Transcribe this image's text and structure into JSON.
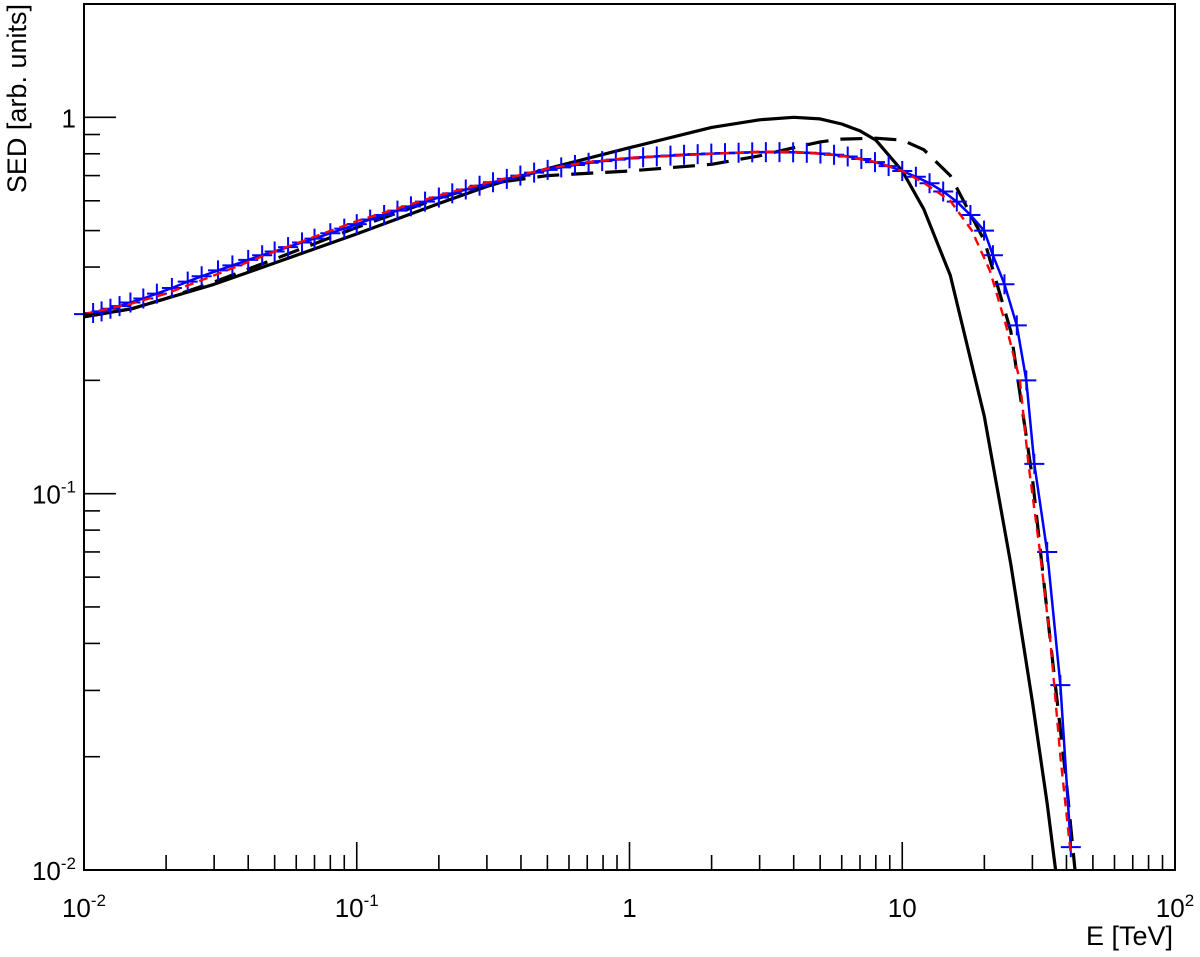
{
  "chart_data": {
    "type": "line",
    "xlabel": "E [TeV]",
    "ylabel": "SED [arb. units]",
    "xscale": "log",
    "yscale": "log",
    "xlim": [
      0.01,
      100
    ],
    "ylim": [
      0.01,
      2
    ],
    "grid": false,
    "x_ticks": [
      {
        "base": "10",
        "exp": "-2"
      },
      {
        "base": "10",
        "exp": "-1"
      },
      {
        "base": "1",
        "exp": ""
      },
      {
        "base": "10",
        "exp": ""
      },
      {
        "base": "10",
        "exp": "2"
      }
    ],
    "y_ticks": [
      {
        "base": "10",
        "exp": "-2"
      },
      {
        "base": "10",
        "exp": "-1"
      },
      {
        "base": "1",
        "exp": ""
      }
    ],
    "colors": {
      "solid": "#000000",
      "dashed": "#000000",
      "fit": "#ff0000",
      "points": "#0000ff"
    },
    "series": [
      {
        "style": "solid-black",
        "x": [
          0.01,
          0.015,
          0.02,
          0.03,
          0.05,
          0.1,
          0.2,
          0.3,
          0.5,
          1,
          2,
          3,
          4,
          5,
          6,
          7,
          8,
          10,
          12,
          15,
          20,
          25,
          30,
          34,
          36.5
        ],
        "y": [
          0.295,
          0.31,
          0.33,
          0.36,
          0.41,
          0.49,
          0.59,
          0.655,
          0.73,
          0.83,
          0.94,
          0.985,
          1.0,
          0.99,
          0.96,
          0.92,
          0.87,
          0.72,
          0.57,
          0.38,
          0.16,
          0.065,
          0.028,
          0.015,
          0.01
        ]
      },
      {
        "style": "dashed-black",
        "x": [
          0.01,
          0.015,
          0.02,
          0.03,
          0.05,
          0.1,
          0.2,
          0.3,
          0.5,
          1,
          2,
          3,
          4,
          5,
          6,
          8,
          10,
          12,
          15,
          20,
          25,
          30,
          35,
          40,
          43
        ],
        "y": [
          0.295,
          0.31,
          0.33,
          0.365,
          0.42,
          0.51,
          0.61,
          0.665,
          0.7,
          0.72,
          0.75,
          0.79,
          0.83,
          0.86,
          0.875,
          0.88,
          0.87,
          0.82,
          0.7,
          0.47,
          0.27,
          0.11,
          0.04,
          0.017,
          0.01
        ]
      },
      {
        "style": "dashed-red",
        "x": [
          0.01,
          0.015,
          0.02,
          0.03,
          0.05,
          0.1,
          0.2,
          0.3,
          0.5,
          0.7,
          1,
          2,
          3,
          4,
          5,
          6,
          8,
          10,
          12,
          15,
          18,
          21,
          24,
          27,
          29,
          32,
          35,
          38,
          41.5
        ],
        "y": [
          0.3,
          0.32,
          0.34,
          0.38,
          0.44,
          0.53,
          0.62,
          0.67,
          0.73,
          0.76,
          0.78,
          0.8,
          0.81,
          0.81,
          0.8,
          0.79,
          0.76,
          0.72,
          0.67,
          0.6,
          0.5,
          0.39,
          0.28,
          0.2,
          0.12,
          0.07,
          0.04,
          0.02,
          0.011
        ]
      },
      {
        "style": "blue-points",
        "x": [
          0.01,
          0.0108,
          0.0116,
          0.0125,
          0.0135,
          0.0148,
          0.0165,
          0.0185,
          0.021,
          0.024,
          0.027,
          0.031,
          0.035,
          0.04,
          0.045,
          0.05,
          0.056,
          0.063,
          0.07,
          0.08,
          0.09,
          0.1,
          0.112,
          0.126,
          0.141,
          0.158,
          0.178,
          0.2,
          0.224,
          0.251,
          0.282,
          0.316,
          0.355,
          0.398,
          0.447,
          0.501,
          0.562,
          0.631,
          0.708,
          0.794,
          0.891,
          1.0,
          1.122,
          1.259,
          1.413,
          1.585,
          1.778,
          1.995,
          2.239,
          2.512,
          2.818,
          3.162,
          3.548,
          3.981,
          4.467,
          5.012,
          5.623,
          6.31,
          7.079,
          7.943,
          8.913,
          10.0,
          11.22,
          12.59,
          14.13,
          15.85,
          17.78,
          19.95,
          21.5,
          23.7,
          26.3,
          28.5,
          30.5,
          34.0,
          38.0,
          41.5
        ],
        "y": [
          0.3,
          0.302,
          0.305,
          0.31,
          0.315,
          0.322,
          0.33,
          0.34,
          0.352,
          0.366,
          0.378,
          0.392,
          0.404,
          0.418,
          0.43,
          0.44,
          0.452,
          0.465,
          0.476,
          0.492,
          0.506,
          0.52,
          0.535,
          0.55,
          0.565,
          0.58,
          0.597,
          0.612,
          0.628,
          0.643,
          0.658,
          0.672,
          0.686,
          0.7,
          0.713,
          0.725,
          0.736,
          0.747,
          0.757,
          0.765,
          0.772,
          0.778,
          0.783,
          0.787,
          0.791,
          0.795,
          0.798,
          0.801,
          0.803,
          0.805,
          0.807,
          0.808,
          0.808,
          0.807,
          0.805,
          0.801,
          0.795,
          0.787,
          0.775,
          0.76,
          0.742,
          0.72,
          0.695,
          0.668,
          0.635,
          0.597,
          0.55,
          0.5,
          0.43,
          0.36,
          0.28,
          0.2,
          0.12,
          0.07,
          0.031,
          0.0115
        ]
      }
    ]
  }
}
